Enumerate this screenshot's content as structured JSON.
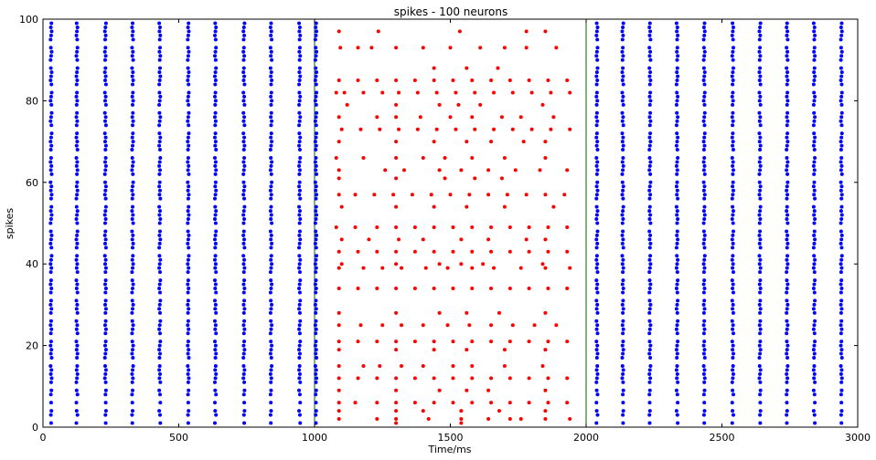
{
  "chart_data": {
    "type": "scatter",
    "title": "spikes - 100 neurons",
    "xlabel": "Time/ms",
    "ylabel": "spikes",
    "xlim": [
      0,
      3000
    ],
    "ylim": [
      0,
      100
    ],
    "xticks": [
      0,
      500,
      1000,
      1500,
      2000,
      2500,
      3000
    ],
    "yticks": [
      0,
      20,
      40,
      60,
      80,
      100
    ],
    "grid": false,
    "legend": "none",
    "vlines": [
      1000,
      2000
    ],
    "vline_color": "#006400",
    "series": [
      {
        "color": "#0000ff",
        "marker": "dot",
        "x_ranges": [
          [
            0,
            1000
          ],
          [
            2000,
            3000
          ]
        ],
        "column_x": [
          30,
          125,
          230,
          330,
          430,
          535,
          635,
          740,
          840,
          945,
          1005,
          2040,
          2135,
          2235,
          2335,
          2435,
          2540,
          2640,
          2740,
          2840,
          2940
        ],
        "neurons_firing": [
          1,
          3,
          4,
          6,
          8,
          9,
          11,
          12,
          13,
          14,
          15,
          17,
          18,
          19,
          20,
          21,
          23,
          24,
          25,
          26,
          28,
          29,
          30,
          31,
          33,
          34,
          35,
          36,
          38,
          39,
          40,
          41,
          42,
          44,
          45,
          46,
          47,
          48,
          50,
          51,
          52,
          53,
          54,
          56,
          57,
          58,
          59,
          60,
          62,
          63,
          64,
          65,
          66,
          68,
          69,
          70,
          71,
          72,
          74,
          75,
          76,
          77,
          79,
          80,
          81,
          82,
          84,
          85,
          86,
          87,
          88,
          90,
          91,
          92,
          93,
          95,
          96,
          97,
          98,
          99
        ]
      },
      {
        "color": "#ff0000",
        "marker": "dot",
        "x_range": [
          1000,
          2000
        ],
        "points": [
          [
            1090,
            97
          ],
          [
            1235,
            97
          ],
          [
            1535,
            97
          ],
          [
            1780,
            97
          ],
          [
            1850,
            97
          ],
          [
            1095,
            93
          ],
          [
            1160,
            93
          ],
          [
            1210,
            93
          ],
          [
            1300,
            93
          ],
          [
            1400,
            93
          ],
          [
            1500,
            93
          ],
          [
            1610,
            93
          ],
          [
            1700,
            93
          ],
          [
            1780,
            93
          ],
          [
            1890,
            93
          ],
          [
            1440,
            88
          ],
          [
            1560,
            88
          ],
          [
            1675,
            88
          ],
          [
            1090,
            85
          ],
          [
            1160,
            85
          ],
          [
            1230,
            85
          ],
          [
            1300,
            85
          ],
          [
            1370,
            85
          ],
          [
            1440,
            85
          ],
          [
            1510,
            85
          ],
          [
            1580,
            85
          ],
          [
            1650,
            85
          ],
          [
            1720,
            85
          ],
          [
            1790,
            85
          ],
          [
            1860,
            85
          ],
          [
            1930,
            85
          ],
          [
            1080,
            82
          ],
          [
            1110,
            82
          ],
          [
            1180,
            82
          ],
          [
            1250,
            82
          ],
          [
            1310,
            82
          ],
          [
            1380,
            82
          ],
          [
            1450,
            82
          ],
          [
            1520,
            82
          ],
          [
            1590,
            82
          ],
          [
            1660,
            82
          ],
          [
            1730,
            82
          ],
          [
            1800,
            82
          ],
          [
            1870,
            82
          ],
          [
            1940,
            82
          ],
          [
            1120,
            79
          ],
          [
            1300,
            79
          ],
          [
            1460,
            79
          ],
          [
            1530,
            79
          ],
          [
            1610,
            79
          ],
          [
            1840,
            79
          ],
          [
            1090,
            76
          ],
          [
            1230,
            76
          ],
          [
            1300,
            76
          ],
          [
            1390,
            76
          ],
          [
            1500,
            76
          ],
          [
            1580,
            76
          ],
          [
            1690,
            76
          ],
          [
            1760,
            76
          ],
          [
            1880,
            76
          ],
          [
            1100,
            73
          ],
          [
            1170,
            73
          ],
          [
            1240,
            73
          ],
          [
            1310,
            73
          ],
          [
            1380,
            73
          ],
          [
            1450,
            73
          ],
          [
            1520,
            73
          ],
          [
            1590,
            73
          ],
          [
            1660,
            73
          ],
          [
            1730,
            73
          ],
          [
            1800,
            73
          ],
          [
            1870,
            73
          ],
          [
            1940,
            73
          ],
          [
            1090,
            70
          ],
          [
            1300,
            70
          ],
          [
            1440,
            70
          ],
          [
            1560,
            70
          ],
          [
            1650,
            70
          ],
          [
            1770,
            70
          ],
          [
            1850,
            70
          ],
          [
            1080,
            66
          ],
          [
            1180,
            66
          ],
          [
            1300,
            66
          ],
          [
            1400,
            66
          ],
          [
            1480,
            66
          ],
          [
            1580,
            66
          ],
          [
            1700,
            66
          ],
          [
            1850,
            66
          ],
          [
            1090,
            63
          ],
          [
            1260,
            63
          ],
          [
            1330,
            63
          ],
          [
            1460,
            63
          ],
          [
            1540,
            63
          ],
          [
            1640,
            63
          ],
          [
            1740,
            63
          ],
          [
            1830,
            63
          ],
          [
            1930,
            63
          ],
          [
            1090,
            61
          ],
          [
            1300,
            61
          ],
          [
            1480,
            61
          ],
          [
            1590,
            61
          ],
          [
            1690,
            61
          ],
          [
            1090,
            57
          ],
          [
            1150,
            57
          ],
          [
            1220,
            57
          ],
          [
            1290,
            57
          ],
          [
            1360,
            57
          ],
          [
            1430,
            57
          ],
          [
            1500,
            57
          ],
          [
            1570,
            57
          ],
          [
            1640,
            57
          ],
          [
            1710,
            57
          ],
          [
            1780,
            57
          ],
          [
            1850,
            57
          ],
          [
            1920,
            57
          ],
          [
            1100,
            54
          ],
          [
            1300,
            54
          ],
          [
            1440,
            54
          ],
          [
            1560,
            54
          ],
          [
            1700,
            54
          ],
          [
            1880,
            54
          ],
          [
            1080,
            49
          ],
          [
            1150,
            49
          ],
          [
            1230,
            49
          ],
          [
            1300,
            49
          ],
          [
            1370,
            49
          ],
          [
            1440,
            49
          ],
          [
            1510,
            49
          ],
          [
            1580,
            49
          ],
          [
            1650,
            49
          ],
          [
            1720,
            49
          ],
          [
            1790,
            49
          ],
          [
            1860,
            49
          ],
          [
            1930,
            49
          ],
          [
            1100,
            46
          ],
          [
            1200,
            46
          ],
          [
            1310,
            46
          ],
          [
            1400,
            46
          ],
          [
            1540,
            46
          ],
          [
            1640,
            46
          ],
          [
            1780,
            46
          ],
          [
            1850,
            46
          ],
          [
            1090,
            43
          ],
          [
            1160,
            43
          ],
          [
            1230,
            43
          ],
          [
            1300,
            43
          ],
          [
            1370,
            43
          ],
          [
            1440,
            43
          ],
          [
            1510,
            43
          ],
          [
            1580,
            43
          ],
          [
            1650,
            43
          ],
          [
            1720,
            43
          ],
          [
            1790,
            43
          ],
          [
            1860,
            43
          ],
          [
            1930,
            43
          ],
          [
            1100,
            40
          ],
          [
            1300,
            40
          ],
          [
            1460,
            40
          ],
          [
            1540,
            40
          ],
          [
            1620,
            40
          ],
          [
            1840,
            40
          ],
          [
            1090,
            39
          ],
          [
            1180,
            39
          ],
          [
            1250,
            39
          ],
          [
            1320,
            39
          ],
          [
            1410,
            39
          ],
          [
            1490,
            39
          ],
          [
            1580,
            39
          ],
          [
            1660,
            39
          ],
          [
            1760,
            39
          ],
          [
            1850,
            39
          ],
          [
            1940,
            39
          ],
          [
            1090,
            34
          ],
          [
            1160,
            34
          ],
          [
            1230,
            34
          ],
          [
            1300,
            34
          ],
          [
            1370,
            34
          ],
          [
            1440,
            34
          ],
          [
            1510,
            34
          ],
          [
            1580,
            34
          ],
          [
            1650,
            34
          ],
          [
            1720,
            34
          ],
          [
            1790,
            34
          ],
          [
            1860,
            34
          ],
          [
            1930,
            34
          ],
          [
            1090,
            28
          ],
          [
            1300,
            28
          ],
          [
            1460,
            28
          ],
          [
            1560,
            28
          ],
          [
            1680,
            28
          ],
          [
            1850,
            28
          ],
          [
            1090,
            25
          ],
          [
            1170,
            25
          ],
          [
            1250,
            25
          ],
          [
            1320,
            25
          ],
          [
            1400,
            25
          ],
          [
            1490,
            25
          ],
          [
            1570,
            25
          ],
          [
            1650,
            25
          ],
          [
            1730,
            25
          ],
          [
            1810,
            25
          ],
          [
            1890,
            25
          ],
          [
            1090,
            21
          ],
          [
            1160,
            21
          ],
          [
            1230,
            21
          ],
          [
            1300,
            21
          ],
          [
            1370,
            21
          ],
          [
            1440,
            21
          ],
          [
            1510,
            21
          ],
          [
            1580,
            21
          ],
          [
            1650,
            21
          ],
          [
            1720,
            21
          ],
          [
            1790,
            21
          ],
          [
            1860,
            21
          ],
          [
            1930,
            21
          ],
          [
            1090,
            19
          ],
          [
            1300,
            19
          ],
          [
            1440,
            19
          ],
          [
            1560,
            19
          ],
          [
            1700,
            19
          ],
          [
            1850,
            19
          ],
          [
            1090,
            15
          ],
          [
            1180,
            15
          ],
          [
            1240,
            15
          ],
          [
            1320,
            15
          ],
          [
            1400,
            15
          ],
          [
            1510,
            15
          ],
          [
            1580,
            15
          ],
          [
            1700,
            15
          ],
          [
            1840,
            15
          ],
          [
            1090,
            12
          ],
          [
            1160,
            12
          ],
          [
            1230,
            12
          ],
          [
            1300,
            12
          ],
          [
            1370,
            12
          ],
          [
            1440,
            12
          ],
          [
            1510,
            12
          ],
          [
            1580,
            12
          ],
          [
            1650,
            12
          ],
          [
            1720,
            12
          ],
          [
            1790,
            12
          ],
          [
            1860,
            12
          ],
          [
            1930,
            12
          ],
          [
            1090,
            9
          ],
          [
            1300,
            9
          ],
          [
            1460,
            9
          ],
          [
            1560,
            9
          ],
          [
            1640,
            9
          ],
          [
            1850,
            9
          ],
          [
            1090,
            6
          ],
          [
            1150,
            6
          ],
          [
            1230,
            6
          ],
          [
            1300,
            6
          ],
          [
            1370,
            6
          ],
          [
            1440,
            6
          ],
          [
            1510,
            6
          ],
          [
            1580,
            6
          ],
          [
            1650,
            6
          ],
          [
            1720,
            6
          ],
          [
            1790,
            6
          ],
          [
            1860,
            6
          ],
          [
            1930,
            6
          ],
          [
            1090,
            4
          ],
          [
            1300,
            4
          ],
          [
            1400,
            4
          ],
          [
            1540,
            4
          ],
          [
            1680,
            4
          ],
          [
            1850,
            4
          ],
          [
            1090,
            2
          ],
          [
            1230,
            2
          ],
          [
            1300,
            2
          ],
          [
            1420,
            2
          ],
          [
            1540,
            2
          ],
          [
            1640,
            2
          ],
          [
            1720,
            2
          ],
          [
            1760,
            2
          ],
          [
            1850,
            2
          ],
          [
            1940,
            2
          ],
          [
            1300,
            1
          ],
          [
            1540,
            1
          ]
        ]
      }
    ]
  }
}
